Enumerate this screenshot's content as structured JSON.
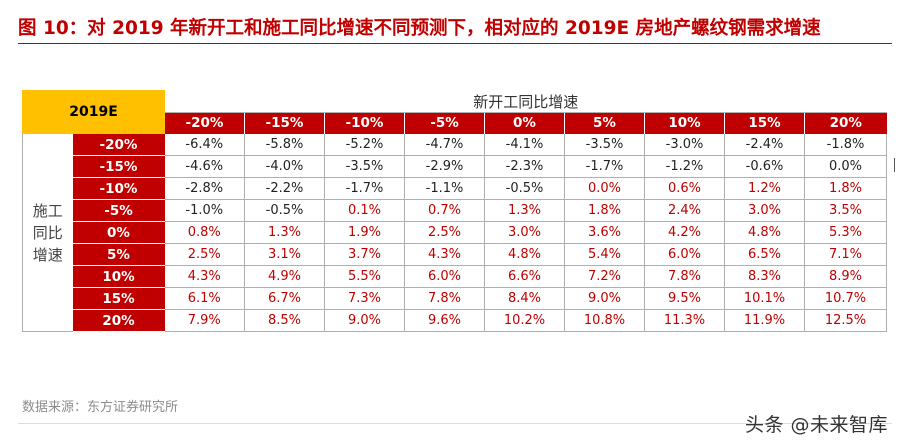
{
  "title": "图 10：对 2019 年新开工和施工同比增速不同预测下，相对应的 2019E 房地产螺纹钢需求增速",
  "table": {
    "corner_label": "2019E",
    "col_axis_label": "新开工同比增速",
    "row_axis_label": "施工同比增速",
    "col_headers": [
      "-20%",
      "-15%",
      "-10%",
      "-5%",
      "0%",
      "5%",
      "10%",
      "15%",
      "20%"
    ],
    "rows": [
      {
        "label": "-20%",
        "values": [
          "-6.4%",
          "-5.8%",
          "-5.2%",
          "-4.7%",
          "-4.1%",
          "-3.5%",
          "-3.0%",
          "-2.4%",
          "-1.8%"
        ]
      },
      {
        "label": "-15%",
        "values": [
          "-4.6%",
          "-4.0%",
          "-3.5%",
          "-2.9%",
          "-2.3%",
          "-1.7%",
          "-1.2%",
          "-0.6%",
          "0.0%"
        ]
      },
      {
        "label": "-10%",
        "values": [
          "-2.8%",
          "-2.2%",
          "-1.7%",
          "-1.1%",
          "-0.5%",
          "0.0%",
          "0.6%",
          "1.2%",
          "1.8%"
        ]
      },
      {
        "label": "-5%",
        "values": [
          "-1.0%",
          "-0.5%",
          "0.1%",
          "0.7%",
          "1.3%",
          "1.8%",
          "2.4%",
          "3.0%",
          "3.5%"
        ]
      },
      {
        "label": "0%",
        "values": [
          "0.8%",
          "1.3%",
          "1.9%",
          "2.5%",
          "3.0%",
          "3.6%",
          "4.2%",
          "4.8%",
          "5.3%"
        ]
      },
      {
        "label": "5%",
        "values": [
          "2.5%",
          "3.1%",
          "3.7%",
          "4.3%",
          "4.8%",
          "5.4%",
          "6.0%",
          "6.5%",
          "7.1%"
        ]
      },
      {
        "label": "10%",
        "values": [
          "4.3%",
          "4.9%",
          "5.5%",
          "6.0%",
          "6.6%",
          "7.2%",
          "7.8%",
          "8.3%",
          "8.9%"
        ]
      },
      {
        "label": "15%",
        "values": [
          "6.1%",
          "6.7%",
          "7.3%",
          "7.8%",
          "8.4%",
          "9.0%",
          "9.5%",
          "10.1%",
          "10.7%"
        ]
      },
      {
        "label": "20%",
        "values": [
          "7.9%",
          "8.5%",
          "9.0%",
          "9.6%",
          "10.2%",
          "10.8%",
          "11.3%",
          "11.9%",
          "12.5%"
        ]
      }
    ],
    "red_cells": [
      [
        3,
        2
      ],
      [
        3,
        3
      ],
      [
        3,
        4
      ],
      [
        3,
        5
      ],
      [
        3,
        6
      ],
      [
        3,
        7
      ],
      [
        3,
        8
      ],
      [
        2,
        5
      ],
      [
        2,
        6
      ],
      [
        2,
        7
      ],
      [
        2,
        8
      ],
      [
        4,
        0
      ],
      [
        4,
        1
      ],
      [
        4,
        2
      ],
      [
        4,
        3
      ],
      [
        4,
        4
      ],
      [
        4,
        5
      ],
      [
        4,
        6
      ],
      [
        4,
        7
      ],
      [
        4,
        8
      ],
      [
        5,
        0
      ],
      [
        5,
        1
      ],
      [
        5,
        2
      ],
      [
        5,
        3
      ],
      [
        5,
        4
      ],
      [
        5,
        5
      ],
      [
        5,
        6
      ],
      [
        5,
        7
      ],
      [
        5,
        8
      ],
      [
        6,
        0
      ],
      [
        6,
        1
      ],
      [
        6,
        2
      ],
      [
        6,
        3
      ],
      [
        6,
        4
      ],
      [
        6,
        5
      ],
      [
        6,
        6
      ],
      [
        6,
        7
      ],
      [
        6,
        8
      ],
      [
        7,
        0
      ],
      [
        7,
        1
      ],
      [
        7,
        2
      ],
      [
        7,
        3
      ],
      [
        7,
        4
      ],
      [
        7,
        5
      ],
      [
        7,
        6
      ],
      [
        7,
        7
      ],
      [
        7,
        8
      ],
      [
        8,
        0
      ],
      [
        8,
        1
      ],
      [
        8,
        2
      ],
      [
        8,
        3
      ],
      [
        8,
        4
      ],
      [
        8,
        5
      ],
      [
        8,
        6
      ],
      [
        8,
        7
      ],
      [
        8,
        8
      ]
    ]
  },
  "source": "数据来源：东方证券研究所",
  "watermark": "头条 @未来智库",
  "colors": {
    "accent_red": "#c00000",
    "header_gold": "#ffc000",
    "source_gray": "#8c8c8c"
  }
}
